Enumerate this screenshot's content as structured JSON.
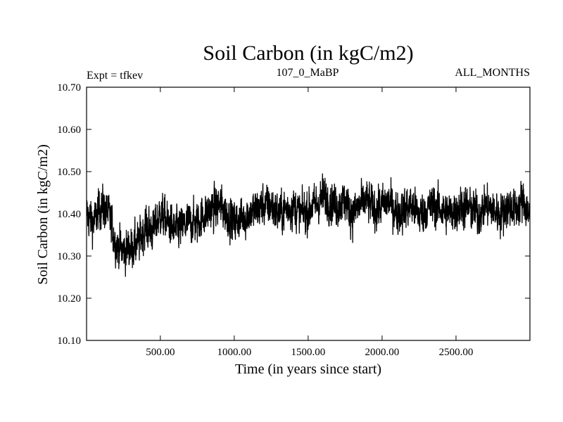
{
  "chart_data": {
    "type": "line",
    "title": "Soil Carbon (in kgC/m2)",
    "subtitle_left": "Expt = tfkev",
    "subtitle_center": "107_0_MaBP",
    "subtitle_right": "ALL_MONTHS",
    "xlabel": "Time (in years since start)",
    "ylabel": "Soil Carbon (in kgC/m2)",
    "xlim": [
      1,
      3000
    ],
    "ylim": [
      10.1,
      10.7
    ],
    "x_ticks": [
      500,
      1000,
      1500,
      2000,
      2500
    ],
    "x_tick_labels": [
      "500.00",
      "1000.00",
      "1500.00",
      "2000.00",
      "2500.00"
    ],
    "y_ticks": [
      10.1,
      10.2,
      10.3,
      10.4,
      10.5,
      10.6,
      10.7
    ],
    "y_tick_labels": [
      "10.10",
      "10.20",
      "10.30",
      "10.40",
      "10.50",
      "10.60",
      "10.70"
    ],
    "line_color": "#000000",
    "series": [
      {
        "x": [
          1,
          50,
          100,
          150,
          200,
          250,
          300,
          350,
          400,
          450,
          500,
          550,
          600,
          650,
          700,
          750,
          800,
          850,
          900,
          950,
          1000,
          1050,
          1100,
          1150,
          1200,
          1250,
          1300,
          1350,
          1400,
          1450,
          1500,
          1550,
          1600,
          1650,
          1700,
          1750,
          1800,
          1850,
          1900,
          1950,
          2000,
          2050,
          2100,
          2150,
          2200,
          2250,
          2300,
          2350,
          2400,
          2450,
          2500,
          2550,
          2600,
          2650,
          2700,
          2750,
          2800,
          2850,
          2900,
          2950,
          3000
        ],
        "values": [
          10.4,
          10.38,
          10.42,
          10.4,
          10.33,
          10.31,
          10.32,
          10.33,
          10.37,
          10.36,
          10.4,
          10.38,
          10.36,
          10.37,
          10.38,
          10.38,
          10.4,
          10.41,
          10.42,
          10.4,
          10.38,
          10.39,
          10.4,
          10.41,
          10.42,
          10.42,
          10.4,
          10.41,
          10.42,
          10.4,
          10.41,
          10.42,
          10.44,
          10.43,
          10.42,
          10.43,
          10.4,
          10.42,
          10.43,
          10.41,
          10.42,
          10.43,
          10.4,
          10.41,
          10.42,
          10.4,
          10.41,
          10.42,
          10.41,
          10.4,
          10.41,
          10.42,
          10.41,
          10.4,
          10.42,
          10.41,
          10.4,
          10.42,
          10.41,
          10.43,
          10.4
        ],
        "noise_amplitude": 0.06
      }
    ]
  }
}
